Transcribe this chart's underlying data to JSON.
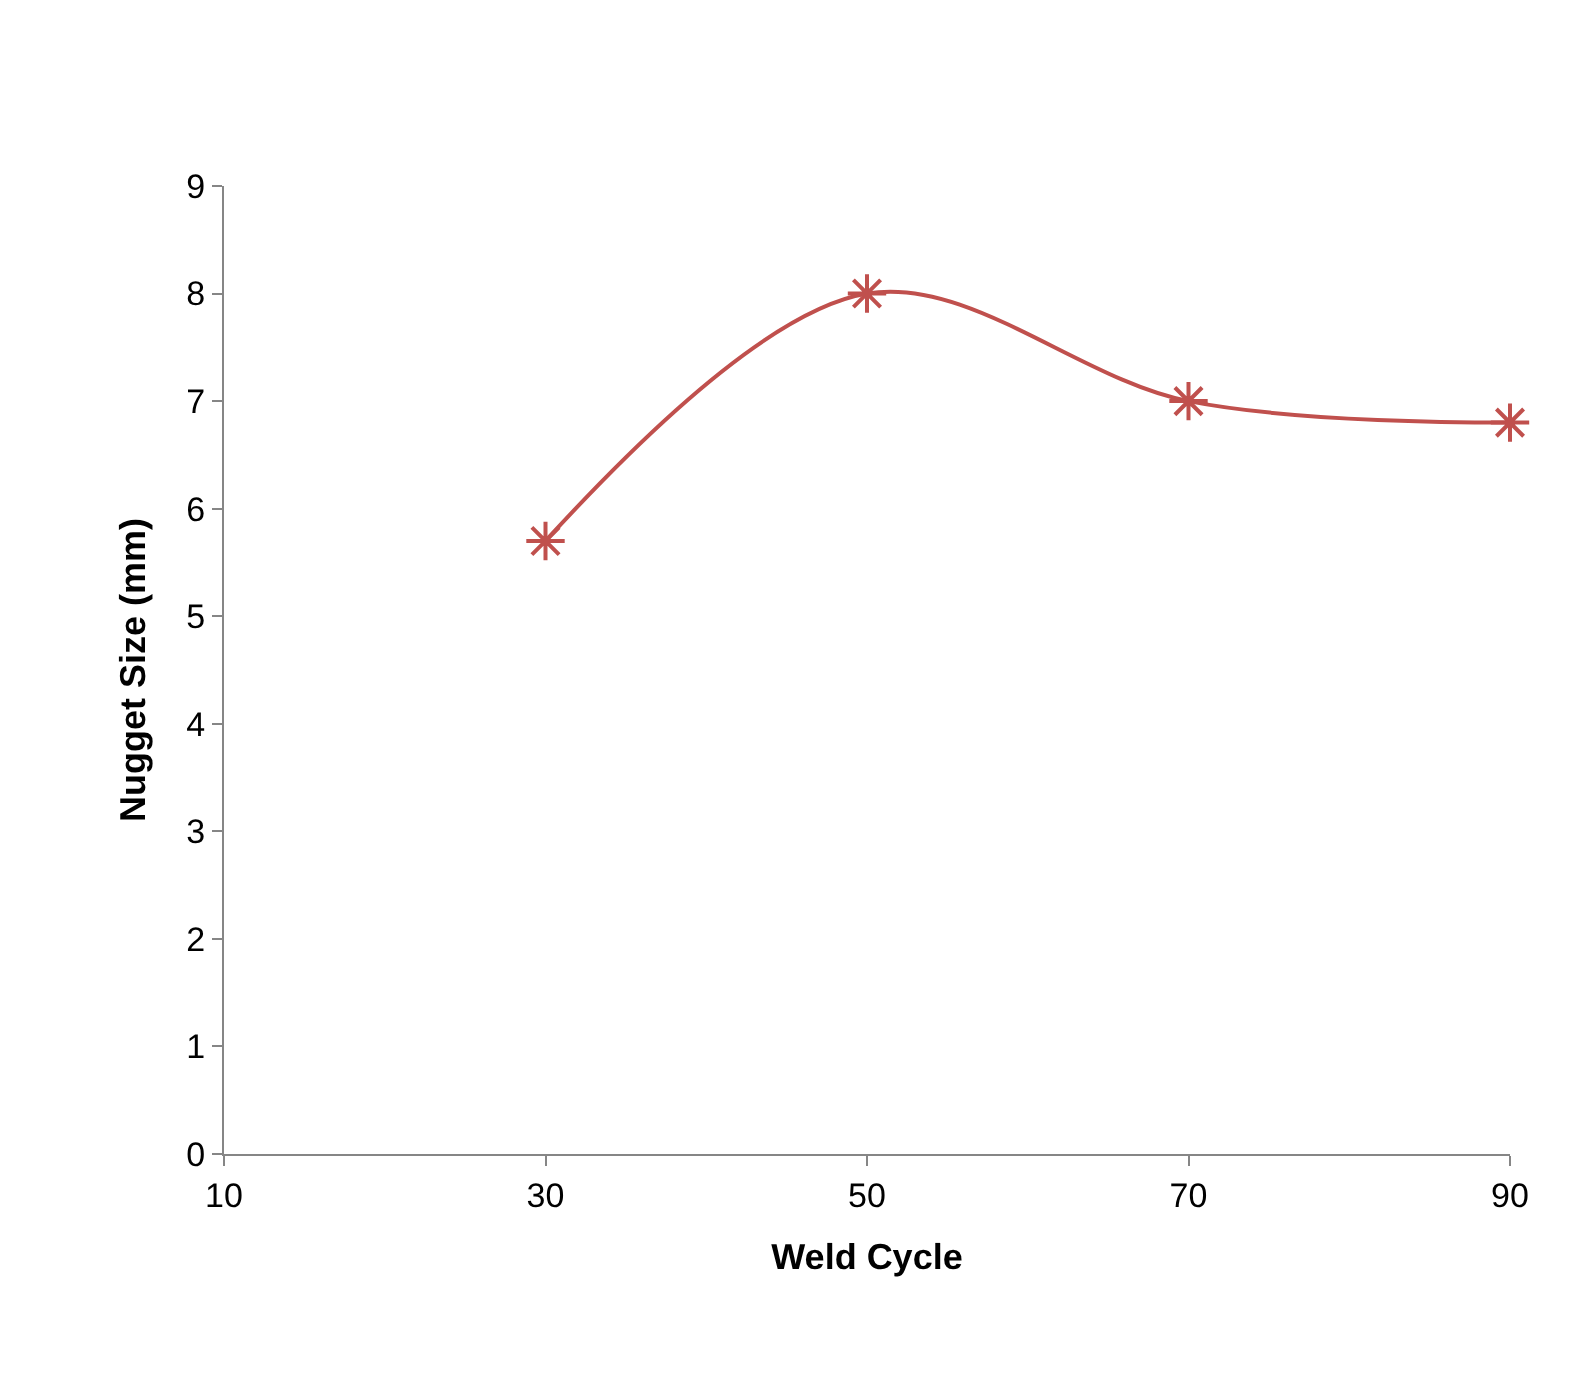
{
  "chart_data": {
    "type": "line",
    "xlabel": "Weld Cycle",
    "ylabel": "Nugget Size (mm)",
    "x": [
      30,
      50,
      70,
      90
    ],
    "series": [
      {
        "color": "#c0504d",
        "values": [
          5.7,
          8.0,
          7.0,
          6.8
        ]
      }
    ],
    "xlim": [
      10,
      90
    ],
    "xticks": [
      10,
      30,
      50,
      70,
      90
    ],
    "ylim": [
      0,
      9
    ],
    "yticks": [
      0,
      1,
      2,
      3,
      4,
      5,
      6,
      7,
      8,
      9
    ],
    "grid": false,
    "marker": "cross",
    "line_style": "solid"
  }
}
